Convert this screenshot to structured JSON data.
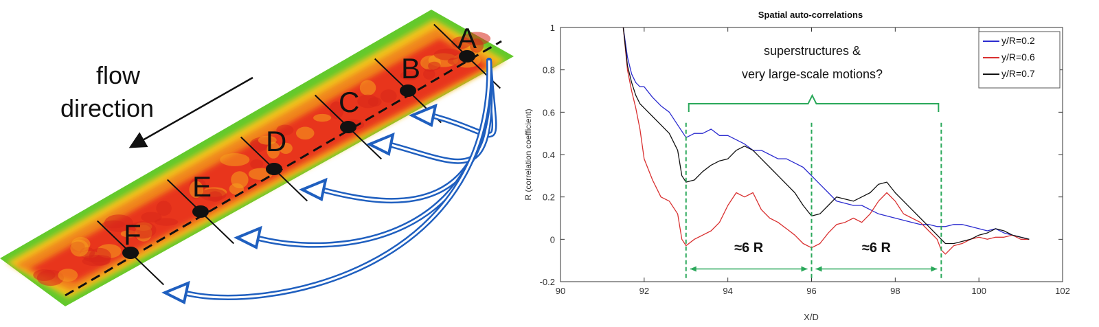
{
  "left_panel": {
    "flow_label_line1": "flow",
    "flow_label_line2": "direction",
    "stations": [
      "A",
      "B",
      "C",
      "D",
      "E",
      "F"
    ],
    "colors": {
      "core": "#e8361b",
      "mid": "#f2a01e",
      "edge": "#63c92c",
      "arrow": "#1f5fbf"
    }
  },
  "chart_data": {
    "type": "line",
    "title": "Spatial auto-correlations",
    "xlabel": "X/D",
    "ylabel": "R (correlation coefficient)",
    "xlim": [
      90,
      102
    ],
    "ylim": [
      -0.2,
      1
    ],
    "xticks": [
      90,
      92,
      94,
      96,
      98,
      100,
      102
    ],
    "yticks": [
      -0.2,
      0,
      0.2,
      0.4,
      0.6,
      0.8,
      1
    ],
    "grid": false,
    "legend_position": "top-right",
    "series": [
      {
        "name": "y/R=0.2",
        "color": "#2b2bcf",
        "x": [
          91.5,
          91.6,
          91.7,
          91.8,
          91.9,
          92.0,
          92.2,
          92.4,
          92.6,
          92.8,
          93.0,
          93.2,
          93.4,
          93.6,
          93.8,
          94.0,
          94.2,
          94.4,
          94.6,
          94.8,
          95.0,
          95.2,
          95.4,
          95.6,
          95.8,
          96.0,
          96.2,
          96.4,
          96.6,
          96.8,
          97.0,
          97.2,
          97.4,
          97.6,
          97.8,
          98.0,
          98.2,
          98.4,
          98.6,
          98.8,
          99.0,
          99.2,
          99.4,
          99.6,
          99.8,
          100.0,
          100.2,
          100.4,
          100.6,
          100.8,
          101.0,
          101.2
        ],
        "y": [
          1.0,
          0.86,
          0.78,
          0.74,
          0.72,
          0.72,
          0.67,
          0.63,
          0.6,
          0.54,
          0.48,
          0.5,
          0.5,
          0.52,
          0.49,
          0.49,
          0.47,
          0.45,
          0.42,
          0.42,
          0.4,
          0.38,
          0.38,
          0.36,
          0.34,
          0.3,
          0.26,
          0.22,
          0.18,
          0.17,
          0.16,
          0.16,
          0.14,
          0.12,
          0.11,
          0.1,
          0.09,
          0.08,
          0.07,
          0.07,
          0.06,
          0.06,
          0.07,
          0.07,
          0.06,
          0.05,
          0.04,
          0.05,
          0.03,
          0.02,
          0.01,
          0.0
        ]
      },
      {
        "name": "y/R=0.6",
        "color": "#d93030",
        "x": [
          91.5,
          91.6,
          91.7,
          91.8,
          91.9,
          92.0,
          92.2,
          92.4,
          92.6,
          92.8,
          92.9,
          93.0,
          93.2,
          93.4,
          93.6,
          93.8,
          94.0,
          94.2,
          94.4,
          94.6,
          94.8,
          95.0,
          95.2,
          95.4,
          95.6,
          95.8,
          96.0,
          96.2,
          96.4,
          96.6,
          96.8,
          97.0,
          97.2,
          97.4,
          97.6,
          97.8,
          98.0,
          98.2,
          98.4,
          98.6,
          98.8,
          99.0,
          99.1,
          99.2,
          99.4,
          99.6,
          99.8,
          100.0,
          100.2,
          100.4,
          100.6,
          100.8,
          101.0,
          101.2
        ],
        "y": [
          1.0,
          0.8,
          0.7,
          0.62,
          0.52,
          0.38,
          0.28,
          0.2,
          0.18,
          0.12,
          0.0,
          -0.03,
          0.0,
          0.02,
          0.04,
          0.08,
          0.16,
          0.22,
          0.2,
          0.22,
          0.14,
          0.1,
          0.08,
          0.05,
          0.02,
          -0.02,
          -0.04,
          -0.02,
          0.03,
          0.07,
          0.08,
          0.1,
          0.08,
          0.12,
          0.18,
          0.22,
          0.18,
          0.12,
          0.1,
          0.08,
          0.04,
          0.0,
          -0.05,
          -0.07,
          -0.03,
          -0.02,
          0.0,
          0.01,
          0.0,
          0.01,
          0.01,
          0.02,
          0.0,
          0.0
        ]
      },
      {
        "name": "y/R=0.7",
        "color": "#111111",
        "x": [
          91.5,
          91.6,
          91.7,
          91.8,
          91.9,
          92.0,
          92.2,
          92.4,
          92.6,
          92.8,
          92.9,
          93.0,
          93.2,
          93.4,
          93.6,
          93.8,
          94.0,
          94.2,
          94.4,
          94.6,
          94.8,
          95.0,
          95.2,
          95.4,
          95.6,
          95.8,
          96.0,
          96.2,
          96.4,
          96.6,
          96.8,
          97.0,
          97.2,
          97.4,
          97.6,
          97.8,
          98.0,
          98.2,
          98.4,
          98.6,
          98.8,
          99.0,
          99.2,
          99.4,
          99.6,
          99.8,
          100.0,
          100.2,
          100.4,
          100.6,
          100.8,
          101.0,
          101.2
        ],
        "y": [
          1.0,
          0.82,
          0.74,
          0.68,
          0.64,
          0.62,
          0.58,
          0.54,
          0.5,
          0.42,
          0.3,
          0.27,
          0.28,
          0.32,
          0.35,
          0.37,
          0.38,
          0.42,
          0.44,
          0.42,
          0.38,
          0.34,
          0.3,
          0.26,
          0.22,
          0.16,
          0.11,
          0.12,
          0.16,
          0.2,
          0.19,
          0.18,
          0.2,
          0.22,
          0.26,
          0.27,
          0.22,
          0.18,
          0.14,
          0.1,
          0.06,
          0.02,
          -0.02,
          -0.02,
          -0.01,
          0.0,
          0.02,
          0.03,
          0.05,
          0.04,
          0.02,
          0.01,
          0.0
        ]
      }
    ],
    "annotation": {
      "text_line1": "superstructures &",
      "text_line2": "very large-scale motions?",
      "color": "#2aa85a",
      "guides_x": [
        93.0,
        96.0,
        99.1
      ],
      "spans": [
        {
          "from": 93.0,
          "to": 96.0,
          "label": "≈6 R"
        },
        {
          "from": 96.0,
          "to": 99.1,
          "label": "≈6 R"
        }
      ]
    }
  }
}
